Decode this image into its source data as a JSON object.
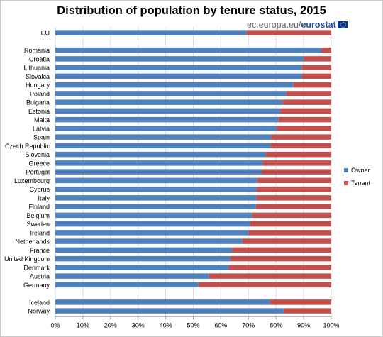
{
  "title": "Distribution of population by tenure status, 2015",
  "brand": {
    "domain": "ec.europa.eu",
    "separator": "/",
    "name": "eurostat"
  },
  "colors": {
    "owner": "#4f81bd",
    "tenant": "#c0504d",
    "grid": "#d9d9d9"
  },
  "chart_data": {
    "type": "bar",
    "orientation": "horizontal",
    "stacked": true,
    "categories": [
      "EU",
      "",
      "Romania",
      "Croatia",
      "Lithuania",
      "Slovakia",
      "Hungary",
      "Poland",
      "Bulgaria",
      "Estonia",
      "Malta",
      "Latvia",
      "Spain",
      "Czech Republic",
      "Slovenia",
      "Greece",
      "Portugal",
      "Luxembourg",
      "Cyprus",
      "Italy",
      "Finland",
      "Belgium",
      "Sweden",
      "Ireland",
      "Netherlands",
      "France",
      "United Kingdom",
      "Denmark",
      "Austria",
      "Germany",
      "",
      "Iceland",
      "Norway"
    ],
    "series": [
      {
        "name": "Owner",
        "values": [
          69.4,
          null,
          96.4,
          90.0,
          89.4,
          89.3,
          86.3,
          83.7,
          82.3,
          81.5,
          80.8,
          80.2,
          78.2,
          78.0,
          76.2,
          75.1,
          74.8,
          73.2,
          72.9,
          72.9,
          72.7,
          71.4,
          70.6,
          70.0,
          67.8,
          64.1,
          63.5,
          62.7,
          55.7,
          51.9,
          null,
          77.8,
          82.7
        ]
      },
      {
        "name": "Tenant",
        "values": [
          30.6,
          null,
          3.6,
          10.0,
          10.6,
          10.7,
          13.7,
          16.3,
          17.7,
          18.5,
          19.2,
          19.8,
          21.8,
          22.0,
          23.8,
          24.9,
          25.2,
          26.8,
          27.1,
          27.1,
          27.3,
          28.6,
          29.4,
          30.0,
          32.2,
          35.9,
          36.5,
          37.3,
          44.3,
          48.1,
          null,
          22.2,
          17.3
        ]
      }
    ],
    "x_ticks": [
      "0%",
      "10%",
      "20%",
      "30%",
      "40%",
      "50%",
      "60%",
      "70%",
      "80%",
      "90%",
      "100%"
    ],
    "xlim": [
      0,
      100
    ],
    "grid": "vertical",
    "legend_position": "right"
  }
}
